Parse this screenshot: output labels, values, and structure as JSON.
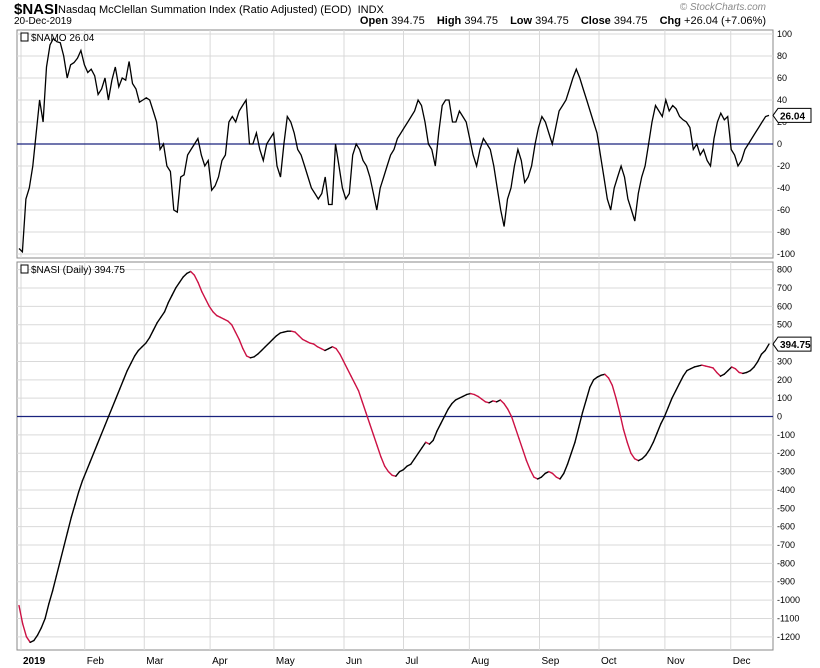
{
  "header": {
    "symbol": "$NASI",
    "description": "Nasdaq McClellan Summation Index (Ratio Adjusted) (EOD)",
    "exchange": "INDX",
    "date": "20-Dec-2019",
    "brand": "© StockCharts.com",
    "open_label": "Open",
    "open": "394.75",
    "high_label": "High",
    "high": "394.75",
    "low_label": "Low",
    "low": "394.75",
    "close_label": "Close",
    "close": "394.75",
    "chg_label": "Chg",
    "chg": "+26.04 (+7.06%)"
  },
  "colors": {
    "line": "#000000",
    "decline": "#cc1144",
    "zero_line": "#1a237e",
    "grid": "#d9d9d9",
    "frame": "#888888"
  },
  "chart_data": [
    {
      "type": "line",
      "label": "$NAMO 26.04",
      "last_value": "26.04",
      "ylim": [
        -100,
        100
      ],
      "yticks": [
        100,
        80,
        60,
        40,
        20,
        0,
        -20,
        -40,
        -60,
        -80,
        -100
      ],
      "zero_line": 0,
      "grid": true,
      "x_start": "2019-01-02",
      "x_end": "2019-12-20",
      "values": [
        -95,
        -98,
        -50,
        -40,
        -20,
        10,
        40,
        20,
        70,
        90,
        96,
        93,
        92,
        80,
        60,
        72,
        74,
        78,
        85,
        72,
        65,
        68,
        62,
        45,
        50,
        60,
        40,
        58,
        70,
        52,
        60,
        58,
        75,
        55,
        50,
        38,
        40,
        42,
        40,
        30,
        20,
        -5,
        0,
        -20,
        -25,
        -60,
        -62,
        -30,
        -28,
        -10,
        -5,
        0,
        5,
        -10,
        -20,
        -15,
        -42,
        -38,
        -30,
        -15,
        -10,
        20,
        25,
        20,
        30,
        35,
        40,
        0,
        0,
        10,
        -5,
        -15,
        0,
        5,
        10,
        -20,
        -30,
        0,
        25,
        20,
        10,
        -5,
        -10,
        -20,
        -30,
        -40,
        -45,
        -50,
        -45,
        -30,
        -55,
        -55,
        0,
        -20,
        -40,
        -50,
        -45,
        -10,
        0,
        -5,
        -15,
        -20,
        -30,
        -45,
        -60,
        -40,
        -30,
        -20,
        -10,
        -5,
        5,
        10,
        15,
        20,
        25,
        30,
        40,
        35,
        20,
        0,
        -5,
        -20,
        10,
        35,
        40,
        40,
        20,
        20,
        30,
        25,
        20,
        5,
        -10,
        -20,
        -5,
        5,
        0,
        -5,
        -20,
        -40,
        -60,
        -75,
        -50,
        -40,
        -20,
        -5,
        -15,
        -35,
        -30,
        -20,
        0,
        15,
        25,
        20,
        10,
        0,
        15,
        30,
        35,
        40,
        50,
        60,
        68,
        60,
        50,
        40,
        30,
        20,
        10,
        -10,
        -30,
        -50,
        -60,
        -40,
        -30,
        -20,
        -30,
        -50,
        -60,
        -70,
        -45,
        -30,
        -20,
        0,
        20,
        35,
        30,
        25,
        40,
        30,
        35,
        32,
        25,
        22,
        20,
        15,
        -5,
        0,
        -10,
        -5,
        -15,
        -20,
        5,
        20,
        28,
        22,
        25,
        -5,
        -10,
        -20,
        -15,
        -5,
        0,
        5,
        10,
        15,
        20,
        25,
        26
      ]
    },
    {
      "type": "line",
      "label": "$NASI (Daily) 394.75",
      "last_value": "394.75",
      "ylim": [
        -1250,
        820
      ],
      "yticks": [
        800,
        700,
        600,
        500,
        400,
        300,
        200,
        100,
        0,
        -100,
        -200,
        -300,
        -400,
        -500,
        -600,
        -700,
        -800,
        -900,
        -1000,
        -1100,
        -1200
      ],
      "zero_line": 0,
      "grid": true,
      "x_start": "2019-01-02",
      "x_end": "2019-12-20",
      "down_color_segments": true,
      "x_ticks": [
        {
          "label": "2019",
          "date": "2019-01-02"
        },
        {
          "label": "Feb",
          "date": "2019-02-01"
        },
        {
          "label": "Mar",
          "date": "2019-03-01"
        },
        {
          "label": "Apr",
          "date": "2019-04-01"
        },
        {
          "label": "May",
          "date": "2019-05-01"
        },
        {
          "label": "Jun",
          "date": "2019-06-03"
        },
        {
          "label": "Jul",
          "date": "2019-07-01"
        },
        {
          "label": "Aug",
          "date": "2019-08-01"
        },
        {
          "label": "Sep",
          "date": "2019-09-03"
        },
        {
          "label": "Oct",
          "date": "2019-10-01"
        },
        {
          "label": "Nov",
          "date": "2019-11-01"
        },
        {
          "label": "Dec",
          "date": "2019-12-02"
        }
      ],
      "values": [
        -1030,
        -1130,
        -1200,
        -1230,
        -1220,
        -1190,
        -1150,
        -1100,
        -1020,
        -950,
        -870,
        -790,
        -710,
        -630,
        -550,
        -480,
        -410,
        -350,
        -300,
        -250,
        -200,
        -150,
        -100,
        -50,
        0,
        50,
        100,
        150,
        200,
        250,
        290,
        330,
        360,
        380,
        400,
        430,
        470,
        510,
        540,
        570,
        620,
        660,
        700,
        730,
        760,
        780,
        790,
        770,
        730,
        680,
        640,
        600,
        570,
        550,
        540,
        530,
        520,
        500,
        460,
        420,
        370,
        330,
        320,
        325,
        340,
        360,
        380,
        400,
        420,
        440,
        455,
        460,
        465,
        465,
        460,
        440,
        420,
        410,
        400,
        395,
        380,
        370,
        360,
        370,
        380,
        370,
        340,
        300,
        260,
        220,
        180,
        140,
        80,
        20,
        -40,
        -100,
        -160,
        -220,
        -270,
        -300,
        -320,
        -325,
        -300,
        -290,
        -270,
        -260,
        -230,
        -200,
        -170,
        -140,
        -150,
        -130,
        -80,
        -40,
        0,
        40,
        70,
        90,
        100,
        110,
        120,
        125,
        120,
        110,
        95,
        80,
        75,
        85,
        80,
        90,
        70,
        40,
        0,
        -60,
        -120,
        -180,
        -240,
        -290,
        -330,
        -340,
        -330,
        -310,
        -300,
        -310,
        -330,
        -340,
        -310,
        -260,
        -200,
        -140,
        -60,
        20,
        90,
        160,
        200,
        215,
        225,
        230,
        210,
        170,
        100,
        20,
        -70,
        -140,
        -200,
        -230,
        -240,
        -230,
        -210,
        -180,
        -140,
        -90,
        -40,
        0,
        50,
        100,
        140,
        180,
        220,
        250,
        260,
        270,
        275,
        280,
        275,
        270,
        265,
        240,
        220,
        230,
        250,
        270,
        260,
        240,
        235,
        240,
        250,
        270,
        300,
        340,
        360,
        394.75
      ]
    }
  ]
}
